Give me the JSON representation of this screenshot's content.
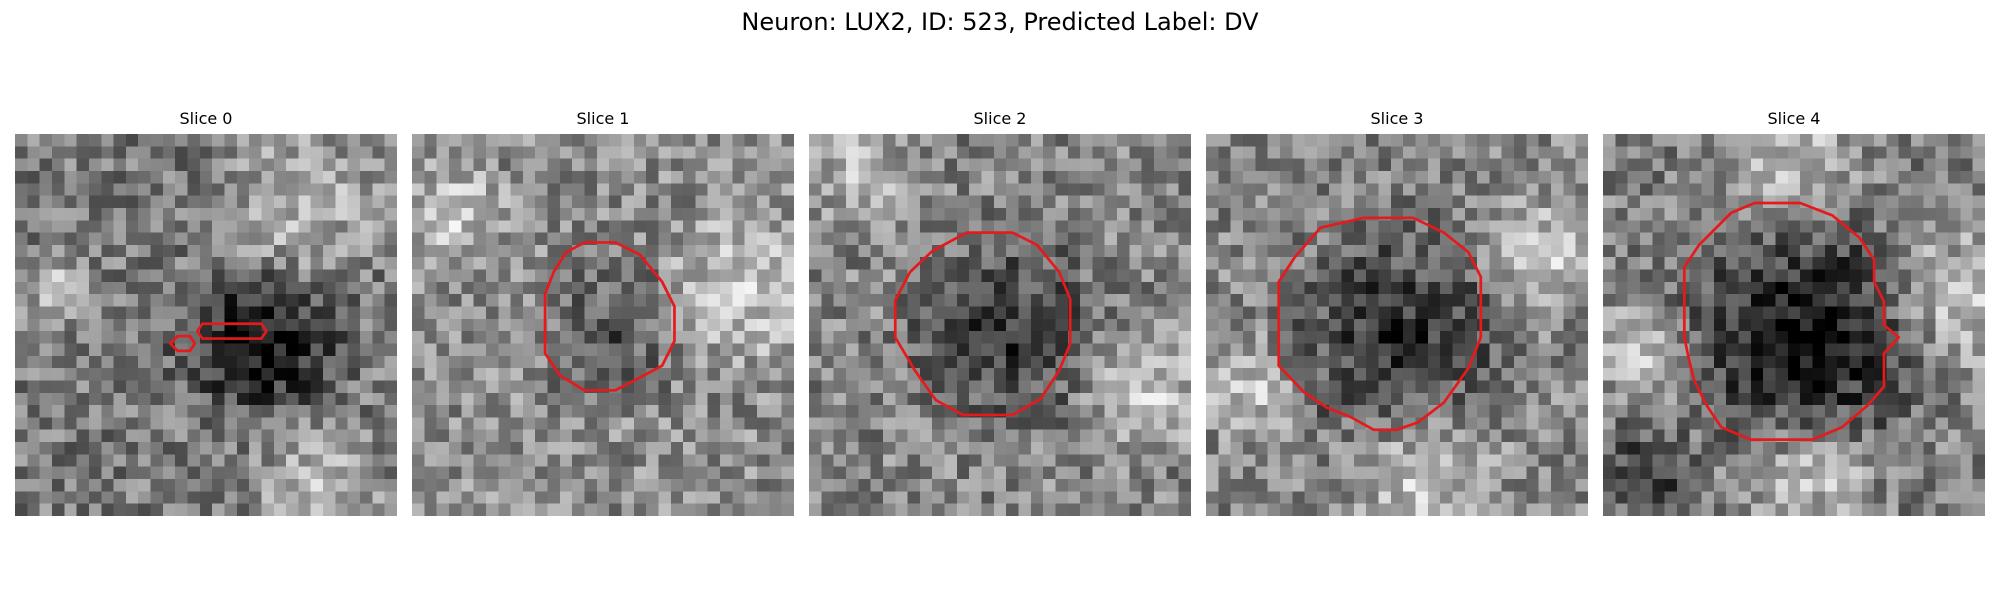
{
  "figure": {
    "title": "Neuron: LUX2, ID: 523, Predicted Label: DV"
  },
  "colors": {
    "contour": "#e41a1c",
    "background": "#ffffff",
    "colormap": "gray"
  },
  "panels": [
    {
      "title": "Slice 0"
    },
    {
      "title": "Slice 1"
    },
    {
      "title": "Slice 2"
    },
    {
      "title": "Slice 3"
    },
    {
      "title": "Slice 4"
    }
  ]
}
